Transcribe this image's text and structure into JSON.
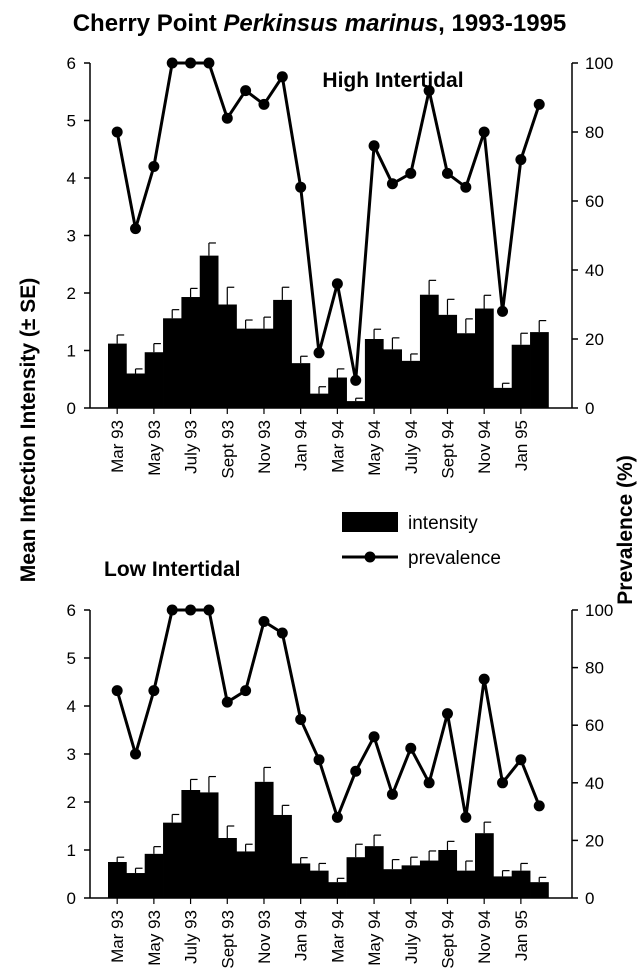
{
  "title": {
    "prefix": "Cherry Point ",
    "species": "Perkinsus marinus",
    "suffix": ", 1993-1995"
  },
  "axes": {
    "ylabel_left": "Mean Infection Intensity (± SE)",
    "ylabel_right": "Prevalence (%)"
  },
  "legend": {
    "intensity_label": "intensity",
    "prevalence_label": "prevalence"
  },
  "chart_data": [
    {
      "type": "bar",
      "title": "High Intertidal",
      "x_tick_labels": [
        "Mar 93",
        "May 93",
        "July 93",
        "Sept 93",
        "Nov 93",
        "Jan 94",
        "Mar 94",
        "May 94",
        "July 94",
        "Sept 94",
        "Nov 94",
        "Jan 95"
      ],
      "ylim_left": [
        0,
        6
      ],
      "yticks_left": [
        0,
        1,
        2,
        3,
        4,
        5,
        6
      ],
      "ylim_right": [
        0,
        100
      ],
      "yticks_right": [
        0,
        20,
        40,
        60,
        80,
        100
      ],
      "series": [
        {
          "name": "intensity",
          "type": "bar",
          "axis": "left",
          "values": [
            1.12,
            0.6,
            0.97,
            1.56,
            1.93,
            2.65,
            1.8,
            1.38,
            1.38,
            1.88,
            0.78,
            0.25,
            0.53,
            0.12,
            1.2,
            1.02,
            0.82,
            1.97,
            1.62,
            1.3,
            1.73,
            0.35,
            1.1,
            1.32
          ],
          "se": [
            0.15,
            0.08,
            0.15,
            0.15,
            0.15,
            0.22,
            0.3,
            0.15,
            0.2,
            0.22,
            0.12,
            0.12,
            0.15,
            0.05,
            0.17,
            0.2,
            0.12,
            0.25,
            0.27,
            0.25,
            0.23,
            0.08,
            0.2,
            0.2
          ]
        },
        {
          "name": "prevalence",
          "type": "line",
          "axis": "right",
          "values": [
            80,
            52,
            70,
            100,
            100,
            100,
            84,
            92,
            88,
            96,
            64,
            16,
            36,
            8,
            76,
            65,
            68,
            92,
            68,
            64,
            80,
            28,
            72,
            88
          ]
        }
      ]
    },
    {
      "type": "bar",
      "title": "Low Intertidal",
      "x_tick_labels": [
        "Mar 93",
        "May 93",
        "July 93",
        "Sept 93",
        "Nov 93",
        "Jan 94",
        "Mar 94",
        "May 94",
        "July 94",
        "Sept 94",
        "Nov 94",
        "Jan 95"
      ],
      "ylim_left": [
        0,
        6
      ],
      "yticks_left": [
        0,
        1,
        2,
        3,
        4,
        5,
        6
      ],
      "ylim_right": [
        0,
        100
      ],
      "yticks_right": [
        0,
        20,
        40,
        60,
        80,
        100
      ],
      "series": [
        {
          "name": "intensity",
          "type": "bar",
          "axis": "left",
          "values": [
            0.75,
            0.52,
            0.92,
            1.57,
            2.25,
            2.2,
            1.25,
            0.97,
            2.42,
            1.73,
            0.72,
            0.57,
            0.33,
            0.85,
            1.08,
            0.6,
            0.68,
            0.78,
            1.0,
            0.57,
            1.35,
            0.45,
            0.57,
            0.33
          ],
          "se": [
            0.1,
            0.1,
            0.15,
            0.17,
            0.22,
            0.33,
            0.25,
            0.15,
            0.3,
            0.2,
            0.12,
            0.15,
            0.08,
            0.27,
            0.23,
            0.2,
            0.17,
            0.2,
            0.18,
            0.2,
            0.23,
            0.12,
            0.15,
            0.1
          ]
        },
        {
          "name": "prevalence",
          "type": "line",
          "axis": "right",
          "values": [
            72,
            50,
            72,
            100,
            100,
            100,
            68,
            72,
            96,
            92,
            62,
            48,
            28,
            44,
            56,
            36,
            52,
            40,
            64,
            28,
            76,
            40,
            48,
            32
          ]
        }
      ]
    }
  ]
}
